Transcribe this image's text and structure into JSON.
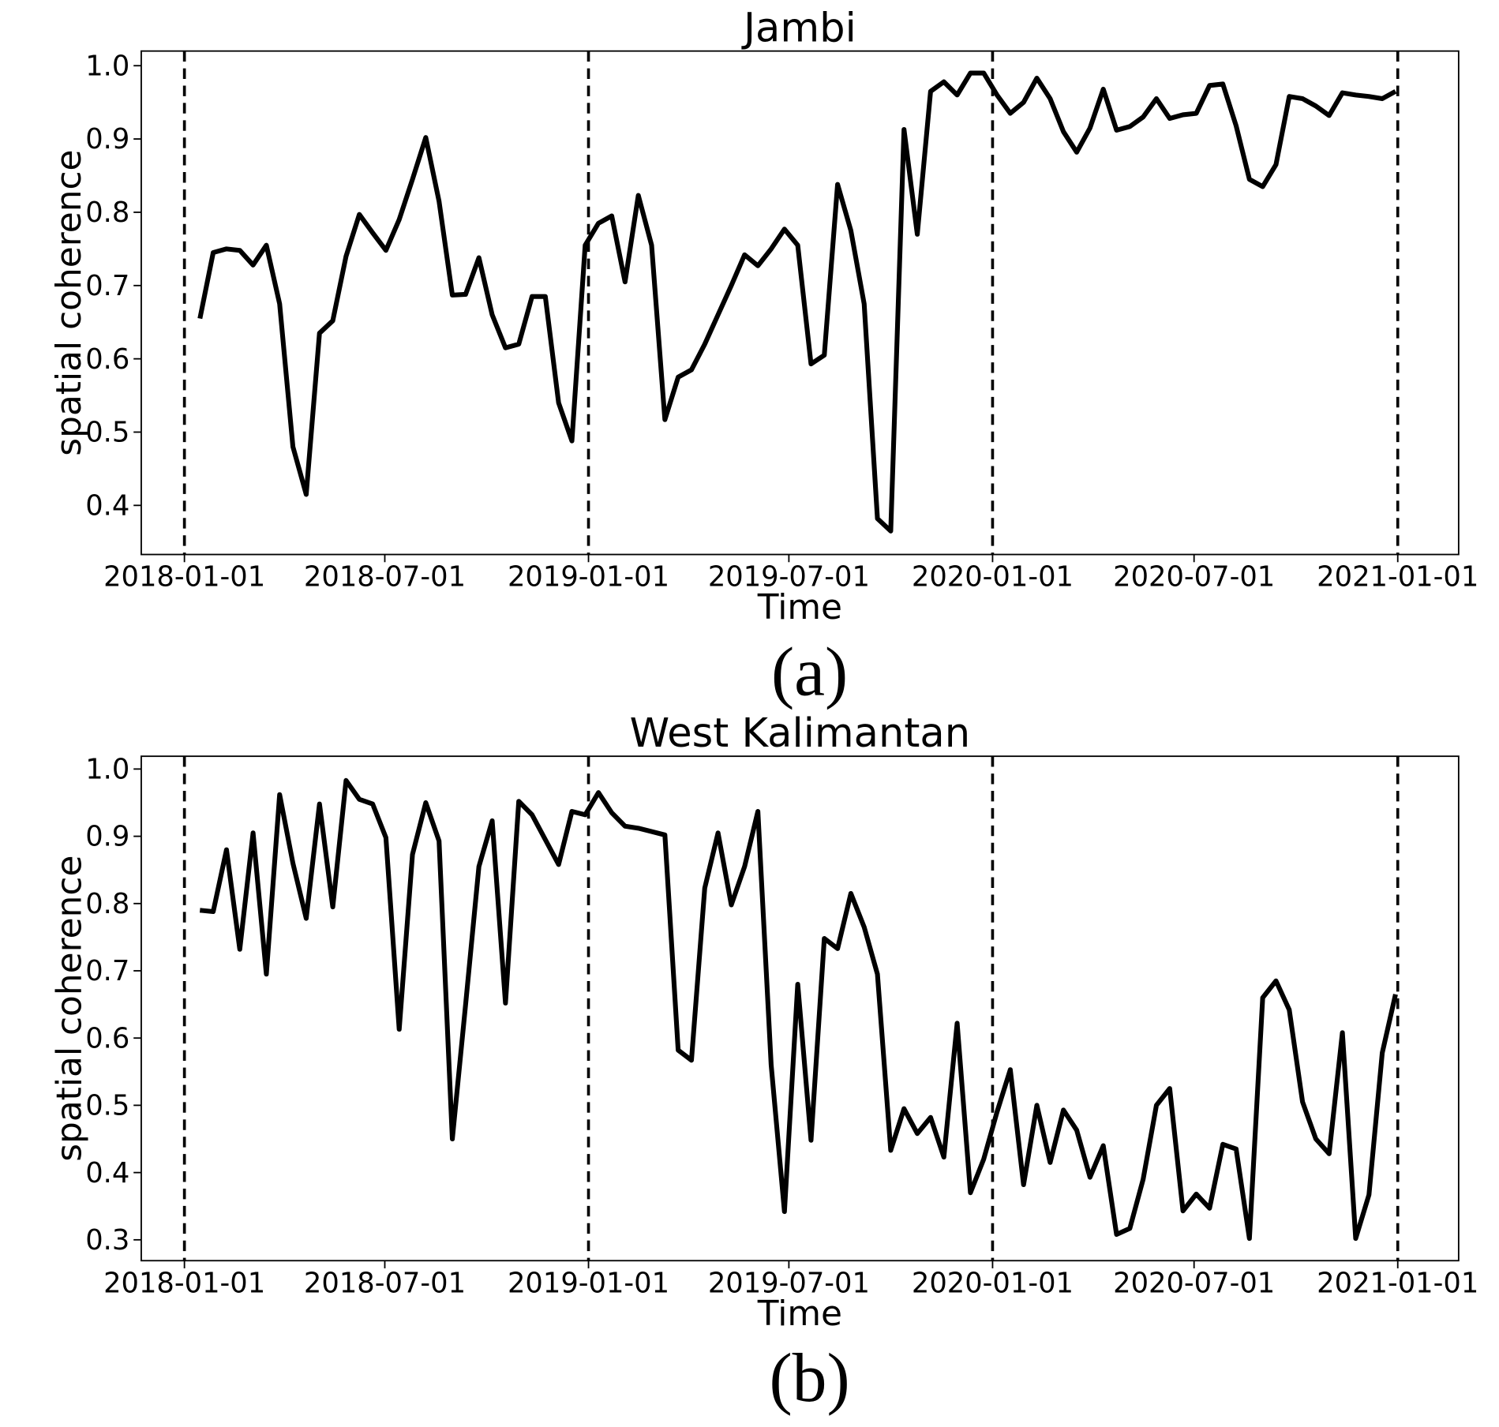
{
  "chart_data": [
    {
      "type": "line",
      "title": "Jambi",
      "xlabel": "Time",
      "ylabel": "spatial coherence",
      "caption": "(a)",
      "x": [
        "2018-01-15",
        "2018-01-27",
        "2018-02-08",
        "2018-02-20",
        "2018-03-04",
        "2018-03-16",
        "2018-03-28",
        "2018-04-09",
        "2018-04-21",
        "2018-05-03",
        "2018-05-15",
        "2018-05-27",
        "2018-06-08",
        "2018-06-20",
        "2018-07-02",
        "2018-07-14",
        "2018-07-26",
        "2018-08-07",
        "2018-08-19",
        "2018-08-31",
        "2018-09-12",
        "2018-09-24",
        "2018-10-06",
        "2018-10-18",
        "2018-10-30",
        "2018-11-11",
        "2018-11-23",
        "2018-12-05",
        "2018-12-17",
        "2018-12-29",
        "2019-01-10",
        "2019-01-22",
        "2019-02-03",
        "2019-02-15",
        "2019-02-27",
        "2019-03-11",
        "2019-03-23",
        "2019-04-04",
        "2019-04-16",
        "2019-04-28",
        "2019-05-10",
        "2019-05-22",
        "2019-06-03",
        "2019-06-15",
        "2019-06-27",
        "2019-07-09",
        "2019-07-21",
        "2019-08-02",
        "2019-08-14",
        "2019-08-26",
        "2019-09-07",
        "2019-09-19",
        "2019-10-01",
        "2019-10-13",
        "2019-10-25",
        "2019-11-06",
        "2019-11-18",
        "2019-11-30",
        "2019-12-12",
        "2019-12-24",
        "2020-01-05",
        "2020-01-17",
        "2020-01-29",
        "2020-02-10",
        "2020-02-22",
        "2020-03-05",
        "2020-03-17",
        "2020-03-29",
        "2020-04-10",
        "2020-04-22",
        "2020-05-04",
        "2020-05-16",
        "2020-05-28",
        "2020-06-09",
        "2020-06-21",
        "2020-07-03",
        "2020-07-15",
        "2020-07-27",
        "2020-08-08",
        "2020-08-20",
        "2020-09-01",
        "2020-09-13",
        "2020-09-25",
        "2020-10-07",
        "2020-10-19",
        "2020-10-31",
        "2020-11-12",
        "2020-11-24",
        "2020-12-06",
        "2020-12-18",
        "2020-12-30"
      ],
      "series": [
        {
          "color": "#000000",
          "values": [
            0.655,
            0.745,
            0.75,
            0.748,
            0.728,
            0.755,
            0.675,
            0.48,
            0.415,
            0.635,
            0.652,
            0.74,
            0.797,
            0.772,
            0.748,
            0.79,
            0.845,
            0.902,
            0.815,
            0.687,
            0.688,
            0.738,
            0.66,
            0.615,
            0.62,
            0.685,
            0.685,
            0.54,
            0.488,
            0.755,
            0.785,
            0.795,
            0.705,
            0.823,
            0.755,
            0.517,
            0.575,
            0.585,
            0.62,
            0.66,
            0.7,
            0.742,
            0.727,
            0.75,
            0.777,
            0.755,
            0.593,
            0.605,
            0.838,
            0.775,
            0.675,
            0.382,
            0.365,
            0.913,
            0.77,
            0.965,
            0.978,
            0.96,
            0.99,
            0.99,
            0.96,
            0.935,
            0.95,
            0.983,
            0.955,
            0.91,
            0.882,
            0.915,
            0.968,
            0.912,
            0.917,
            0.93,
            0.955,
            0.928,
            0.933,
            0.935,
            0.973,
            0.975,
            0.918,
            0.845,
            0.835,
            0.865,
            0.958,
            0.955,
            0.945,
            0.932,
            0.963,
            0.96,
            0.958,
            0.955,
            0.965
          ]
        }
      ],
      "xlim": [
        "2017-11-23",
        "2021-02-25"
      ],
      "xticks": [
        "2018-01-01",
        "2018-07-01",
        "2019-01-01",
        "2019-07-01",
        "2020-01-01",
        "2020-07-01",
        "2021-01-01"
      ],
      "vlines": [
        "2018-01-01",
        "2019-01-01",
        "2020-01-01",
        "2021-01-01"
      ],
      "ylim": [
        0.333,
        1.02
      ],
      "yticks": [
        {
          "value": 0.4,
          "label": "0.4"
        },
        {
          "value": 0.5,
          "label": "0.5"
        },
        {
          "value": 0.6,
          "label": "0.6"
        },
        {
          "value": 0.7,
          "label": "0.7"
        },
        {
          "value": 0.8,
          "label": "0.8"
        },
        {
          "value": 0.9,
          "label": "0.9"
        },
        {
          "value": 1.0,
          "label": "1.0"
        }
      ],
      "grid": false
    },
    {
      "type": "line",
      "title": "West Kalimantan",
      "xlabel": "Time",
      "ylabel": "spatial coherence",
      "caption": "(b)",
      "x": [
        "2018-01-15",
        "2018-01-27",
        "2018-02-08",
        "2018-02-20",
        "2018-03-04",
        "2018-03-16",
        "2018-03-28",
        "2018-04-09",
        "2018-04-21",
        "2018-05-03",
        "2018-05-15",
        "2018-05-27",
        "2018-06-08",
        "2018-06-20",
        "2018-07-02",
        "2018-07-14",
        "2018-07-26",
        "2018-08-07",
        "2018-08-19",
        "2018-08-31",
        "2018-09-12",
        "2018-09-24",
        "2018-10-06",
        "2018-10-18",
        "2018-10-30",
        "2018-11-11",
        "2018-11-23",
        "2018-12-05",
        "2018-12-17",
        "2018-12-29",
        "2019-01-10",
        "2019-01-22",
        "2019-02-03",
        "2019-02-15",
        "2019-02-27",
        "2019-03-11",
        "2019-03-23",
        "2019-04-04",
        "2019-04-16",
        "2019-04-28",
        "2019-05-10",
        "2019-05-22",
        "2019-06-03",
        "2019-06-15",
        "2019-06-27",
        "2019-07-09",
        "2019-07-21",
        "2019-08-02",
        "2019-08-14",
        "2019-08-26",
        "2019-09-07",
        "2019-09-19",
        "2019-10-01",
        "2019-10-13",
        "2019-10-25",
        "2019-11-06",
        "2019-11-18",
        "2019-11-30",
        "2019-12-12",
        "2019-12-24",
        "2020-01-05",
        "2020-01-17",
        "2020-01-29",
        "2020-02-10",
        "2020-02-22",
        "2020-03-05",
        "2020-03-17",
        "2020-03-29",
        "2020-04-10",
        "2020-04-22",
        "2020-05-04",
        "2020-05-16",
        "2020-05-28",
        "2020-06-09",
        "2020-06-21",
        "2020-07-03",
        "2020-07-15",
        "2020-07-27",
        "2020-08-08",
        "2020-08-20",
        "2020-09-01",
        "2020-09-13",
        "2020-09-25",
        "2020-10-07",
        "2020-10-19",
        "2020-10-31",
        "2020-11-12",
        "2020-11-24",
        "2020-12-06",
        "2020-12-18",
        "2020-12-30"
      ],
      "series": [
        {
          "color": "#000000",
          "values": [
            0.79,
            0.788,
            0.88,
            0.732,
            0.905,
            0.695,
            0.962,
            0.86,
            0.778,
            0.948,
            0.795,
            0.983,
            0.955,
            0.948,
            0.898,
            0.613,
            0.873,
            0.95,
            0.893,
            0.45,
            0.65,
            0.855,
            0.923,
            0.652,
            0.952,
            0.932,
            0.895,
            0.858,
            0.937,
            0.932,
            0.965,
            0.935,
            0.915,
            0.912,
            0.907,
            0.902,
            0.582,
            0.567,
            0.823,
            0.905,
            0.798,
            0.855,
            0.937,
            0.56,
            0.342,
            0.68,
            0.448,
            0.748,
            0.733,
            0.815,
            0.765,
            0.695,
            0.433,
            0.495,
            0.458,
            0.482,
            0.423,
            0.622,
            0.37,
            0.42,
            0.49,
            0.553,
            0.382,
            0.5,
            0.415,
            0.493,
            0.463,
            0.393,
            0.44,
            0.308,
            0.317,
            0.39,
            0.5,
            0.525,
            0.343,
            0.368,
            0.347,
            0.442,
            0.435,
            0.302,
            0.66,
            0.685,
            0.642,
            0.505,
            0.45,
            0.428,
            0.608,
            0.302,
            0.367,
            0.578,
            0.665
          ]
        }
      ],
      "xlim": [
        "2017-11-23",
        "2021-02-25"
      ],
      "xticks": [
        "2018-01-01",
        "2018-07-01",
        "2019-01-01",
        "2019-07-01",
        "2020-01-01",
        "2020-07-01",
        "2021-01-01"
      ],
      "vlines": [
        "2018-01-01",
        "2019-01-01",
        "2020-01-01",
        "2021-01-01"
      ],
      "ylim": [
        0.269,
        1.019
      ],
      "yticks": [
        {
          "value": 0.3,
          "label": "0.3"
        },
        {
          "value": 0.4,
          "label": "0.4"
        },
        {
          "value": 0.5,
          "label": "0.5"
        },
        {
          "value": 0.6,
          "label": "0.6"
        },
        {
          "value": 0.7,
          "label": "0.7"
        },
        {
          "value": 0.8,
          "label": "0.8"
        },
        {
          "value": 0.9,
          "label": "0.9"
        },
        {
          "value": 1.0,
          "label": "1.0"
        }
      ],
      "grid": false
    }
  ]
}
